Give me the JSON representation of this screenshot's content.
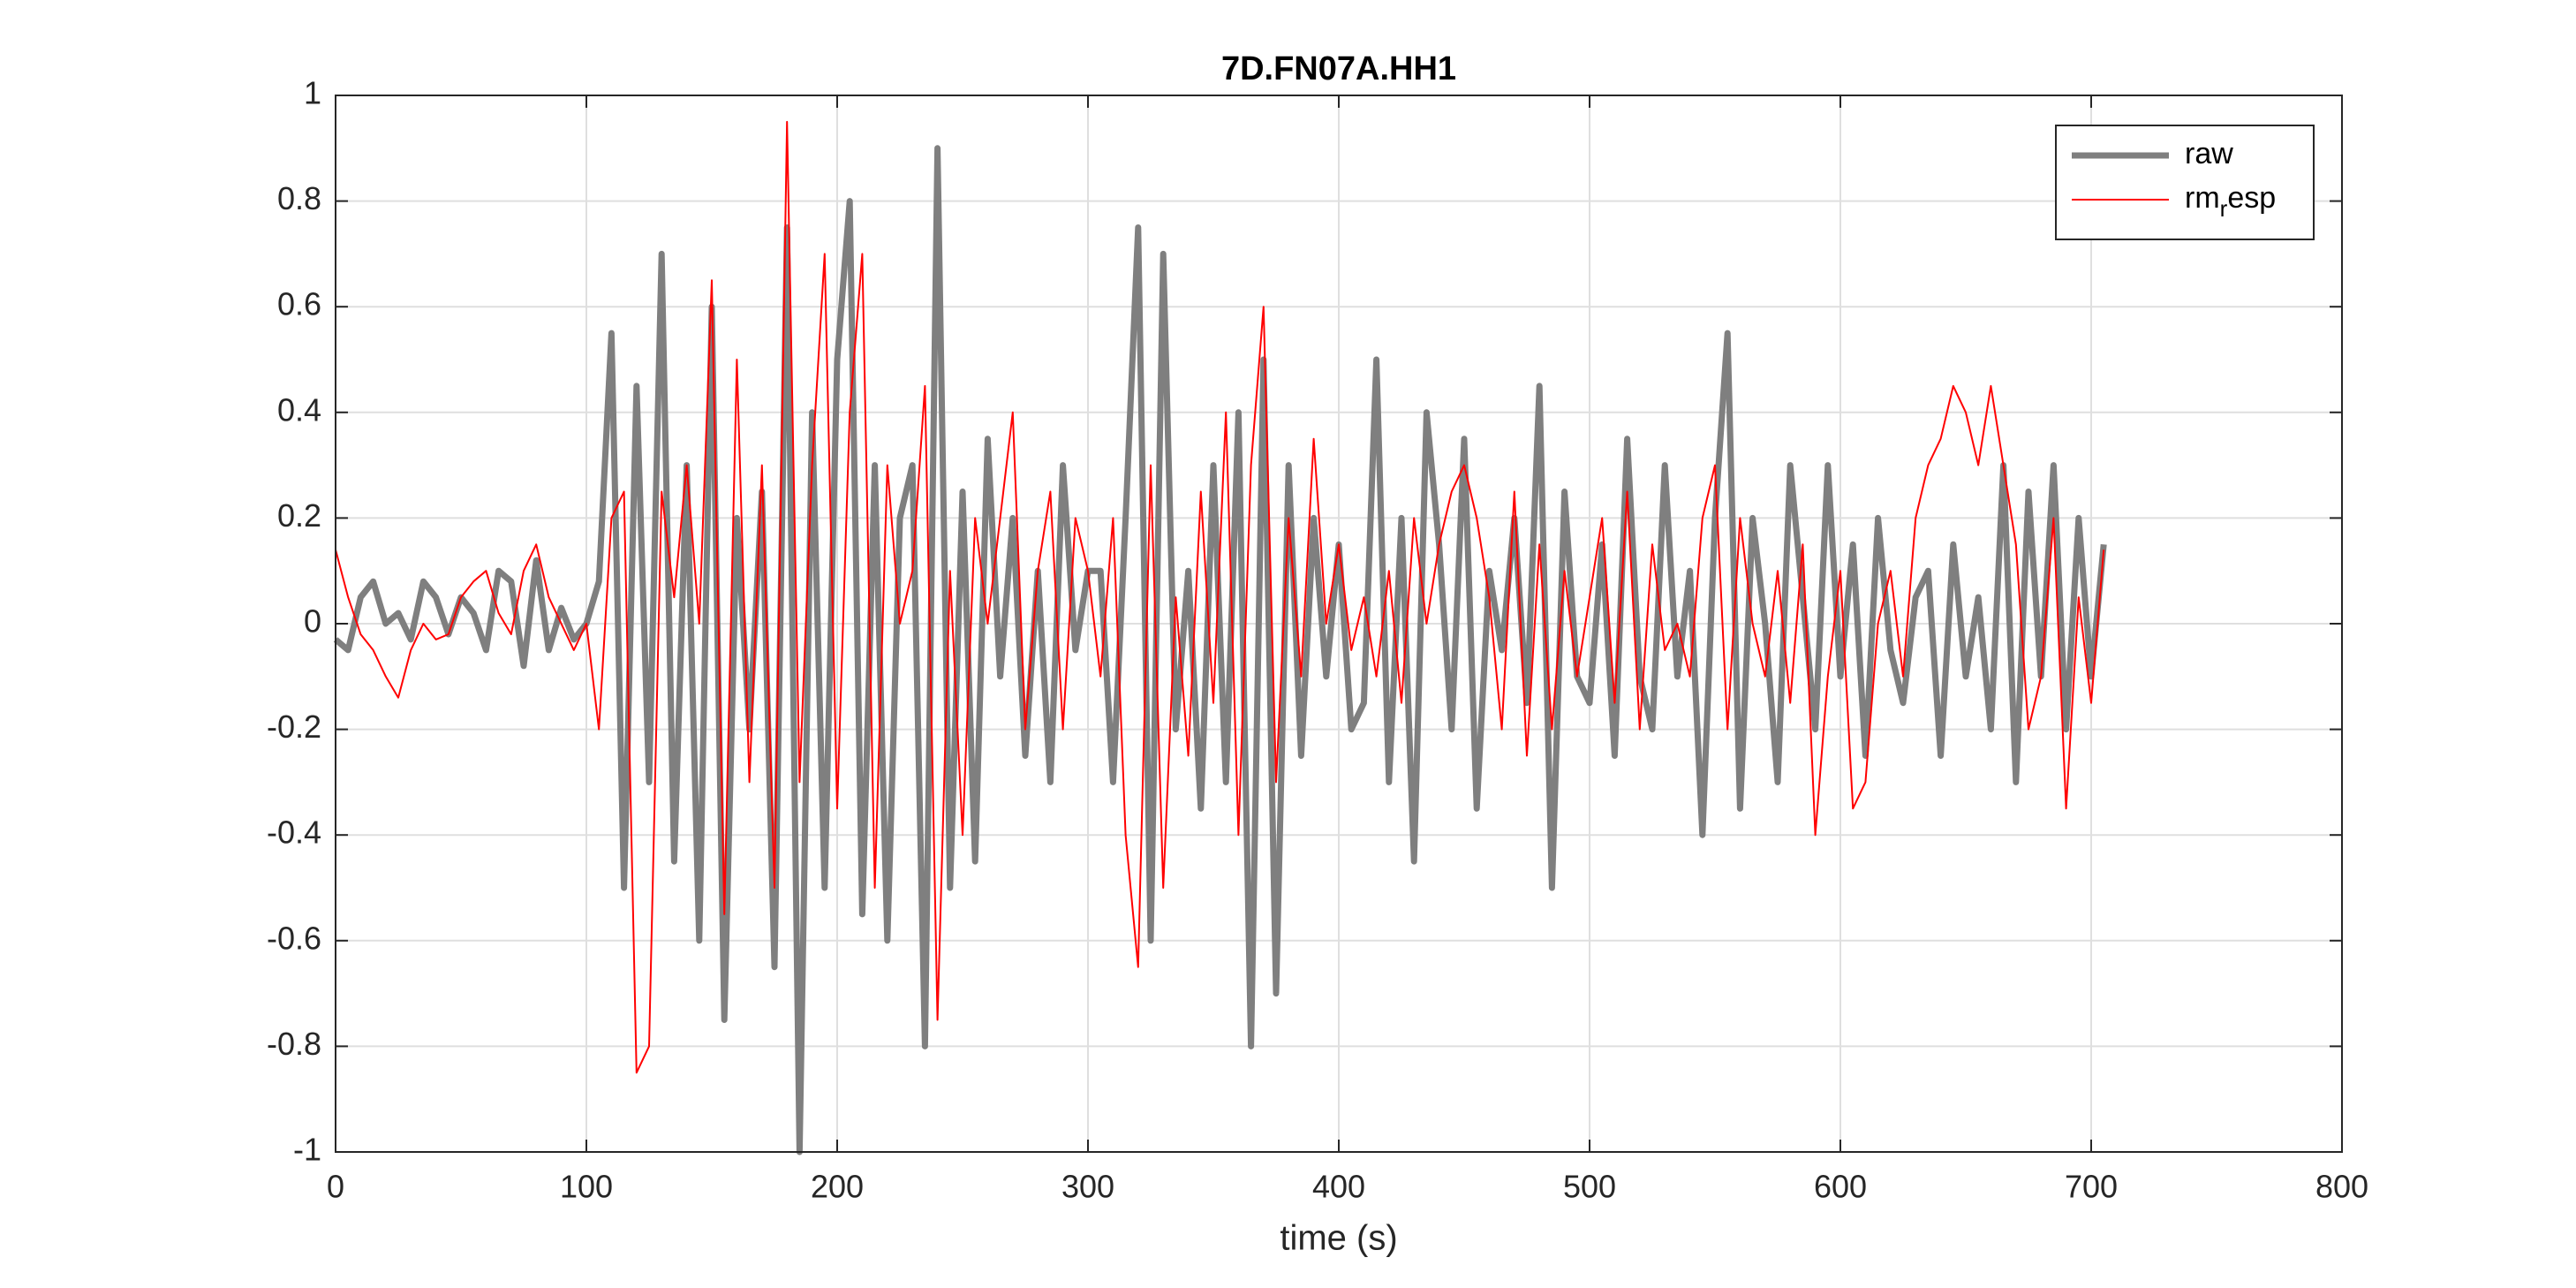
{
  "chart_data": {
    "type": "line",
    "title": "7D.FN07A.HH1",
    "xlabel": "time (s)",
    "x": [
      0,
      5,
      10,
      15,
      20,
      25,
      30,
      35,
      40,
      45,
      50,
      55,
      60,
      65,
      70,
      75,
      80,
      85,
      90,
      95,
      100,
      105,
      110,
      115,
      120,
      125,
      130,
      135,
      140,
      145,
      150,
      155,
      160,
      165,
      170,
      175,
      180,
      185,
      190,
      195,
      200,
      205,
      210,
      215,
      220,
      225,
      230,
      235,
      240,
      245,
      250,
      255,
      260,
      265,
      270,
      275,
      280,
      285,
      290,
      295,
      300,
      305,
      310,
      315,
      320,
      325,
      330,
      335,
      340,
      345,
      350,
      355,
      360,
      365,
      370,
      375,
      380,
      385,
      390,
      395,
      400,
      405,
      410,
      415,
      420,
      425,
      430,
      435,
      440,
      445,
      450,
      455,
      460,
      465,
      470,
      475,
      480,
      485,
      490,
      495,
      500,
      505,
      510,
      515,
      520,
      525,
      530,
      535,
      540,
      545,
      550,
      555,
      560,
      565,
      570,
      575,
      580,
      585,
      590,
      595,
      600,
      605,
      610,
      615,
      620,
      625,
      630,
      635,
      640,
      645,
      650,
      655,
      660,
      665,
      670,
      675,
      680,
      685,
      690,
      695,
      700,
      705
    ],
    "series": [
      {
        "name": "raw",
        "color": "#7f7f7f",
        "values": [
          -0.03,
          -0.05,
          0.05,
          0.08,
          0.0,
          0.02,
          -0.03,
          0.08,
          0.05,
          -0.02,
          0.05,
          0.02,
          -0.05,
          0.1,
          0.08,
          -0.08,
          0.12,
          -0.05,
          0.03,
          -0.03,
          0.0,
          0.08,
          0.55,
          -0.5,
          0.45,
          -0.3,
          0.7,
          -0.45,
          0.3,
          -0.6,
          0.6,
          -0.75,
          0.2,
          -0.2,
          0.25,
          -0.65,
          0.75,
          -1.0,
          0.4,
          -0.5,
          0.5,
          0.8,
          -0.55,
          0.3,
          -0.6,
          0.2,
          0.3,
          -0.8,
          0.9,
          -0.5,
          0.25,
          -0.45,
          0.35,
          -0.1,
          0.2,
          -0.25,
          0.1,
          -0.3,
          0.3,
          -0.05,
          0.1,
          0.1,
          -0.3,
          0.2,
          0.75,
          -0.6,
          0.7,
          -0.2,
          0.1,
          -0.35,
          0.3,
          -0.3,
          0.4,
          -0.8,
          0.5,
          -0.7,
          0.3,
          -0.25,
          0.2,
          -0.1,
          0.15,
          -0.2,
          -0.15,
          0.5,
          -0.3,
          0.2,
          -0.45,
          0.4,
          0.15,
          -0.2,
          0.35,
          -0.35,
          0.1,
          -0.05,
          0.2,
          -0.15,
          0.45,
          -0.5,
          0.25,
          -0.1,
          -0.15,
          0.15,
          -0.25,
          0.35,
          -0.1,
          -0.2,
          0.3,
          -0.1,
          0.1,
          -0.4,
          0.2,
          0.55,
          -0.35,
          0.2,
          0.0,
          -0.3,
          0.3,
          0.05,
          -0.2,
          0.3,
          -0.1,
          0.15,
          -0.25,
          0.2,
          -0.05,
          -0.15,
          0.05,
          0.1,
          -0.25,
          0.15,
          -0.1,
          0.05,
          -0.2,
          0.3,
          -0.3,
          0.25,
          -0.1,
          0.3,
          -0.2,
          0.2,
          -0.1,
          0.15
        ]
      },
      {
        "name": "rm_resp",
        "color": "#ff0000",
        "values": [
          0.14,
          0.05,
          -0.02,
          -0.05,
          -0.1,
          -0.14,
          -0.05,
          0.0,
          -0.03,
          -0.02,
          0.05,
          0.08,
          0.1,
          0.02,
          -0.02,
          0.1,
          0.15,
          0.05,
          0.0,
          -0.05,
          0.0,
          -0.2,
          0.2,
          0.25,
          -0.85,
          -0.8,
          0.25,
          0.05,
          0.3,
          0.0,
          0.65,
          -0.55,
          0.5,
          -0.3,
          0.3,
          -0.5,
          0.95,
          -0.3,
          0.3,
          0.7,
          -0.35,
          0.4,
          0.7,
          -0.5,
          0.3,
          0.0,
          0.1,
          0.45,
          -0.75,
          0.1,
          -0.4,
          0.2,
          0.0,
          0.2,
          0.4,
          -0.2,
          0.1,
          0.25,
          -0.2,
          0.2,
          0.1,
          -0.1,
          0.2,
          -0.4,
          -0.65,
          0.3,
          -0.5,
          0.05,
          -0.25,
          0.25,
          -0.15,
          0.4,
          -0.4,
          0.3,
          0.6,
          -0.3,
          0.2,
          -0.1,
          0.35,
          0.0,
          0.15,
          -0.05,
          0.05,
          -0.1,
          0.1,
          -0.15,
          0.2,
          0.0,
          0.15,
          0.25,
          0.3,
          0.2,
          0.05,
          -0.2,
          0.25,
          -0.25,
          0.15,
          -0.2,
          0.1,
          -0.1,
          0.05,
          0.2,
          -0.15,
          0.25,
          -0.2,
          0.15,
          -0.05,
          0.0,
          -0.1,
          0.2,
          0.3,
          -0.2,
          0.2,
          0.0,
          -0.1,
          0.1,
          -0.15,
          0.15,
          -0.4,
          -0.1,
          0.1,
          -0.35,
          -0.3,
          0.0,
          0.1,
          -0.1,
          0.2,
          0.3,
          0.35,
          0.45,
          0.4,
          0.3,
          0.45,
          0.3,
          0.15,
          -0.2,
          -0.1,
          0.2,
          -0.35,
          0.05,
          -0.15,
          0.14
        ]
      }
    ],
    "xlim": [
      0,
      800
    ],
    "xticks": [
      0,
      100,
      200,
      300,
      400,
      500,
      600,
      700,
      800
    ],
    "ylim": [
      -1,
      1
    ],
    "yticks": [
      -1,
      -0.8,
      -0.6,
      -0.4,
      -0.2,
      0,
      0.2,
      0.4,
      0.6,
      0.8,
      1
    ],
    "grid": true,
    "legend": "northeast"
  }
}
